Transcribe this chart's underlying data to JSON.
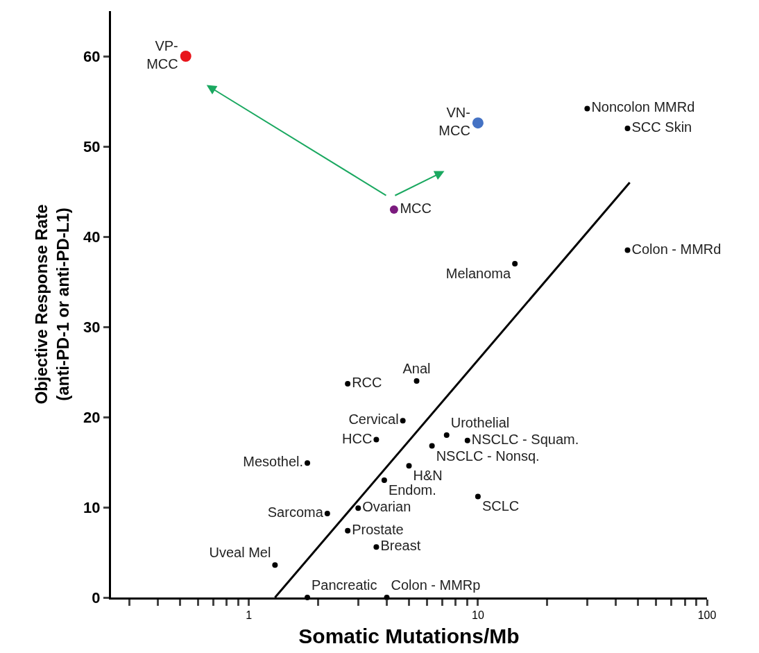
{
  "chart_data": {
    "type": "scatter",
    "xlabel": "Somatic Mutations/Mb",
    "ylabel": "Objective Response Rate\n(anti-PD-1 or anti-PD-L1)",
    "log": "x",
    "legend": false,
    "marker": "circle",
    "xlim": [
      0.25,
      100
    ],
    "xticks": [
      {
        "value": 0.3,
        "label": null
      },
      {
        "value": 0.4,
        "label": null
      },
      {
        "value": 0.5,
        "label": null
      },
      {
        "value": 0.6,
        "label": null
      },
      {
        "value": 0.7,
        "label": null
      },
      {
        "value": 0.8,
        "label": null
      },
      {
        "value": 0.9,
        "label": null
      },
      1,
      {
        "value": 2,
        "label": null
      },
      {
        "value": 3,
        "label": null
      },
      {
        "value": 4,
        "label": null
      },
      {
        "value": 5,
        "label": null
      },
      {
        "value": 6,
        "label": null
      },
      {
        "value": 7,
        "label": null
      },
      {
        "value": 8,
        "label": null
      },
      {
        "value": 9,
        "label": null
      },
      10,
      {
        "value": 20,
        "label": null
      },
      {
        "value": 30,
        "label": null
      },
      {
        "value": 40,
        "label": null
      },
      {
        "value": 50,
        "label": null
      },
      {
        "value": 60,
        "label": null
      },
      {
        "value": 70,
        "label": null
      },
      {
        "value": 80,
        "label": null
      },
      {
        "value": 90,
        "label": null
      },
      100
    ],
    "ylim": [
      0,
      65
    ],
    "yticks": [
      0,
      10,
      20,
      30,
      40,
      50,
      60
    ],
    "series": [
      {
        "name": "VP-\nMCC",
        "color": "#e8141b",
        "x": [
          0.53
        ],
        "values": [
          60
        ]
      },
      {
        "name": "VN-\nMCC",
        "color": "#4472c4",
        "x": [
          10
        ],
        "values": [
          52.6
        ]
      },
      {
        "name": "MCC",
        "color": "#7b1a7e",
        "x": [
          4.3
        ],
        "values": [
          43
        ]
      },
      {
        "name": "Noncolon MMRd",
        "color": "#000000",
        "x": [
          30
        ],
        "values": [
          54.2
        ]
      },
      {
        "name": "SCC Skin",
        "color": "#000000",
        "x": [
          45
        ],
        "values": [
          52
        ]
      },
      {
        "name": "Colon - MMRd",
        "color": "#000000",
        "x": [
          45
        ],
        "values": [
          38.5
        ]
      },
      {
        "name": "Melanoma",
        "color": "#000000",
        "x": [
          14.5
        ],
        "values": [
          37
        ]
      },
      {
        "name": "Anal",
        "color": "#000000",
        "x": [
          5.4
        ],
        "values": [
          24
        ]
      },
      {
        "name": "RCC",
        "color": "#000000",
        "x": [
          2.7
        ],
        "values": [
          23.7
        ]
      },
      {
        "name": "Cervical",
        "color": "#000000",
        "x": [
          4.7
        ],
        "values": [
          19.6
        ]
      },
      {
        "name": "Urothelial",
        "color": "#000000",
        "x": [
          7.3
        ],
        "values": [
          18
        ]
      },
      {
        "name": "NSCLC - Squam.",
        "color": "#000000",
        "x": [
          9
        ],
        "values": [
          17.4
        ]
      },
      {
        "name": "HCC",
        "color": "#000000",
        "x": [
          3.6
        ],
        "values": [
          17.5
        ]
      },
      {
        "name": "NSCLC - Nonsq.",
        "color": "#000000",
        "x": [
          6.3
        ],
        "values": [
          16.8
        ]
      },
      {
        "name": "Mesothel.",
        "color": "#000000",
        "x": [
          1.8
        ],
        "values": [
          14.9
        ]
      },
      {
        "name": "H&N",
        "color": "#000000",
        "x": [
          5
        ],
        "values": [
          14.6
        ]
      },
      {
        "name": "Endom.",
        "color": "#000000",
        "x": [
          3.9
        ],
        "values": [
          13
        ]
      },
      {
        "name": "SCLC",
        "color": "#000000",
        "x": [
          10
        ],
        "values": [
          11.2
        ]
      },
      {
        "name": "Sarcoma",
        "color": "#000000",
        "x": [
          2.2
        ],
        "values": [
          9.3
        ]
      },
      {
        "name": "Ovarian",
        "color": "#000000",
        "x": [
          3
        ],
        "values": [
          9.9
        ]
      },
      {
        "name": "Prostate",
        "color": "#000000",
        "x": [
          2.7
        ],
        "values": [
          7.4
        ]
      },
      {
        "name": "Breast",
        "color": "#000000",
        "x": [
          3.6
        ],
        "values": [
          5.6
        ]
      },
      {
        "name": "Uveal Mel",
        "color": "#000000",
        "x": [
          1.3
        ],
        "values": [
          3.6
        ]
      },
      {
        "name": "Pancreatic",
        "color": "#000000",
        "x": [
          1.8
        ],
        "values": [
          0
        ]
      },
      {
        "name": "Colon - MMRp",
        "color": "#000000",
        "x": [
          4
        ],
        "values": [
          0
        ]
      },
      {
        "type": "line",
        "color": "#000000",
        "marker": "none",
        "x": [
          1.3,
          46
        ],
        "values": [
          0,
          46
        ]
      }
    ]
  }
}
